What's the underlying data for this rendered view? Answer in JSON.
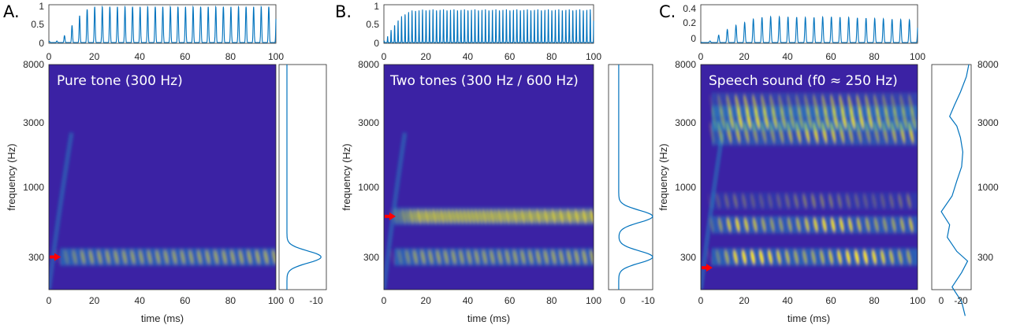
{
  "colors": {
    "line": "#0072BD",
    "arrow": "#ff0000",
    "axis": "#262626",
    "spec_bg": "#3b22a4",
    "spec_mid": "#1ca8c8",
    "spec_hi": "#f5e21c"
  },
  "panels": [
    {
      "label": "A.",
      "title": "Pure tone (300 Hz)",
      "env_yticks": [
        "0",
        "0.5",
        "1"
      ],
      "right_yticks": [],
      "spec_xticks": [
        "0",
        "20",
        "40",
        "60",
        "80",
        "100"
      ],
      "spec_yticks": [
        "8000",
        "3000",
        "1000",
        "300"
      ],
      "profile_xticks": [
        "0",
        "-10"
      ],
      "ylabel": "frequency (Hz)",
      "xlabel": "time (ms)",
      "arrow_hz": 300
    },
    {
      "label": "B.",
      "title": "Two tones (300 Hz / 600 Hz)",
      "env_yticks": [
        "0",
        "0.5",
        "1"
      ],
      "right_yticks": [],
      "spec_xticks": [
        "0",
        "20",
        "40",
        "60",
        "80",
        "100"
      ],
      "spec_yticks": [
        "8000",
        "3000",
        "1000",
        "300"
      ],
      "profile_xticks": [
        "0",
        "-10"
      ],
      "ylabel": "frequency (Hz)",
      "xlabel": "time (ms)",
      "arrow_hz": 600
    },
    {
      "label": "C.",
      "title": "Speech sound (f0 ≈ 250 Hz)",
      "env_yticks": [
        "0",
        "0.2",
        "0.4"
      ],
      "right_yticks": [
        "8000",
        "3000",
        "1000",
        "300"
      ],
      "spec_xticks": [
        "0",
        "20",
        "40",
        "60",
        "80",
        "100"
      ],
      "spec_yticks": [
        "8000",
        "3000",
        "1000",
        "300"
      ],
      "profile_xticks": [
        "0",
        "-20"
      ],
      "ylabel": "frequency (Hz)",
      "xlabel": "time (ms)",
      "arrow_hz": 250
    }
  ],
  "chart_data": [
    {
      "type": "line",
      "panel": "A",
      "xlim": [
        0,
        100
      ],
      "ylim": [
        0,
        1
      ],
      "x": [
        0,
        4,
        8,
        10,
        12,
        14,
        16,
        18,
        20,
        30,
        40,
        50,
        60,
        70,
        80,
        90,
        100
      ],
      "series": [
        {
          "values": [
            0.05,
            0.06,
            0.25,
            0.45,
            0.6,
            0.75,
            0.85,
            0.92,
            0.95,
            0.95,
            0.95,
            0.95,
            0.95,
            0.95,
            0.95,
            0.95,
            0.95
          ]
        }
      ],
      "xticks": [
        0,
        20,
        40,
        60,
        80,
        100
      ],
      "yticks": [
        0,
        0.5,
        1
      ],
      "oscillation_freq_hz": 300
    },
    {
      "type": "heatmap",
      "panel": "A",
      "xlim": [
        0,
        100
      ],
      "ylim_hz": [
        100,
        8000
      ],
      "y_scale": "log",
      "xticks": [
        0,
        20,
        40,
        60,
        80,
        100
      ],
      "yticks": [
        300,
        1000,
        3000,
        8000
      ],
      "xlabel": "time (ms)",
      "ylabel": "frequency (Hz)",
      "bands": [
        {
          "freq_hz": 300,
          "strength": 1.0,
          "harmonic": false
        }
      ]
    },
    {
      "type": "line",
      "panel": "A-profile",
      "xlim": [
        3,
        -15
      ],
      "ylim_hz": [
        100,
        8000
      ],
      "xticks": [
        0,
        -10
      ],
      "peaks": [
        {
          "freq_hz": 300,
          "depth": -13
        }
      ]
    },
    {
      "type": "line",
      "panel": "B",
      "xlim": [
        0,
        100
      ],
      "ylim": [
        0,
        1
      ],
      "x": [
        0,
        2,
        4,
        6,
        8,
        10,
        12,
        14,
        20,
        30,
        40,
        50,
        60,
        70,
        80,
        90,
        100
      ],
      "series": [
        {
          "values": [
            0.05,
            0.2,
            0.4,
            0.55,
            0.68,
            0.77,
            0.83,
            0.86,
            0.88,
            0.88,
            0.88,
            0.88,
            0.88,
            0.88,
            0.88,
            0.88,
            0.88
          ]
        }
      ],
      "xticks": [
        0,
        20,
        40,
        60,
        80,
        100
      ],
      "yticks": [
        0,
        0.5,
        1
      ],
      "oscillation_freq_hz": 600
    },
    {
      "type": "heatmap",
      "panel": "B",
      "xlim": [
        0,
        100
      ],
      "ylim_hz": [
        100,
        8000
      ],
      "y_scale": "log",
      "xticks": [
        0,
        20,
        40,
        60,
        80,
        100
      ],
      "yticks": [
        300,
        1000,
        3000,
        8000
      ],
      "xlabel": "time (ms)",
      "ylabel": "frequency (Hz)",
      "bands": [
        {
          "freq_hz": 300,
          "strength": 1.0,
          "harmonic": false
        },
        {
          "freq_hz": 600,
          "strength": 0.9,
          "harmonic": false
        }
      ]
    },
    {
      "type": "line",
      "panel": "B-profile",
      "xlim": [
        3,
        -10
      ],
      "ylim_hz": [
        100,
        8000
      ],
      "xticks": [
        0,
        -10
      ],
      "peaks": [
        {
          "freq_hz": 300,
          "depth": -10
        },
        {
          "freq_hz": 600,
          "depth": -10
        }
      ]
    },
    {
      "type": "line",
      "panel": "C",
      "xlim": [
        0,
        100
      ],
      "ylim": [
        0,
        0.45
      ],
      "x": [
        0,
        5,
        10,
        15,
        20,
        25,
        30,
        40,
        50,
        60,
        70,
        80,
        90,
        100
      ],
      "series": [
        {
          "values": [
            0.01,
            0.03,
            0.13,
            0.2,
            0.24,
            0.29,
            0.31,
            0.31,
            0.3,
            0.31,
            0.3,
            0.29,
            0.28,
            0.27
          ]
        }
      ],
      "xticks": [
        0,
        20,
        40,
        60,
        80,
        100
      ],
      "yticks": [
        0,
        0.2,
        0.4
      ],
      "oscillation_freq_hz": 250
    },
    {
      "type": "heatmap",
      "panel": "C",
      "xlim": [
        0,
        100
      ],
      "ylim_hz": [
        100,
        8000
      ],
      "y_scale": "log",
      "xticks": [
        0,
        20,
        40,
        60,
        80,
        100
      ],
      "yticks": [
        300,
        1000,
        3000,
        8000
      ],
      "xlabel": "time (ms)",
      "ylabel": "frequency (Hz)",
      "bands": [
        {
          "freq_hz": 300,
          "strength": 1.0,
          "harmonic": true
        },
        {
          "freq_hz": 520,
          "strength": 0.9,
          "harmonic": true
        },
        {
          "freq_hz": 780,
          "strength": 0.35,
          "harmonic": true
        },
        {
          "freq_hz": 2500,
          "strength": 0.8,
          "harmonic": true
        },
        {
          "freq_hz": 3200,
          "strength": 0.85,
          "harmonic": true
        },
        {
          "freq_hz": 4000,
          "strength": 0.55,
          "harmonic": true
        }
      ]
    },
    {
      "type": "line",
      "panel": "C-profile",
      "xlim": [
        3,
        -30
      ],
      "ylim_hz": [
        100,
        8000
      ],
      "xticks": [
        0,
        -20
      ],
      "profile": [
        {
          "freq_hz": 8000,
          "value": -28
        },
        {
          "freq_hz": 6500,
          "value": -26
        },
        {
          "freq_hz": 5000,
          "value": -21
        },
        {
          "freq_hz": 4000,
          "value": -16
        },
        {
          "freq_hz": 3300,
          "value": -12
        },
        {
          "freq_hz": 2800,
          "value": -18
        },
        {
          "freq_hz": 2300,
          "value": -21
        },
        {
          "freq_hz": 1800,
          "value": -23
        },
        {
          "freq_hz": 1400,
          "value": -22
        },
        {
          "freq_hz": 1100,
          "value": -18
        },
        {
          "freq_hz": 850,
          "value": -14
        },
        {
          "freq_hz": 650,
          "value": -5
        },
        {
          "freq_hz": 520,
          "value": -12
        },
        {
          "freq_hz": 420,
          "value": -10
        },
        {
          "freq_hz": 330,
          "value": -18
        },
        {
          "freq_hz": 280,
          "value": -27
        },
        {
          "freq_hz": 230,
          "value": -22
        },
        {
          "freq_hz": 180,
          "value": -14
        },
        {
          "freq_hz": 140,
          "value": -22
        },
        {
          "freq_hz": 110,
          "value": -25
        }
      ]
    }
  ]
}
